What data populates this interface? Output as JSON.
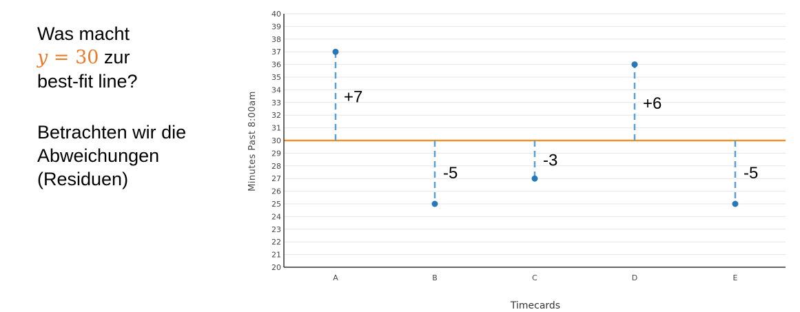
{
  "slide": {
    "question_prefix": "Was macht",
    "equation_var": "y",
    "equation_eq": " = ",
    "equation_val": "30",
    "question_suffix": " zur",
    "question_line3": "best-fit line?",
    "body_line1": "Betrachten wir die",
    "body_line2": "Abweichungen",
    "body_line3": "(Residuen)"
  },
  "colors": {
    "point": "#2878b8",
    "residual": "#5a9fd4",
    "fit_line": "#f0922e",
    "equation": "#e87a2a",
    "grid": "#e6e6e6",
    "axis": "#333333",
    "tick_text": "#444444"
  },
  "chart_data": {
    "type": "scatter",
    "categories": [
      "A",
      "B",
      "C",
      "D",
      "E"
    ],
    "values": [
      37,
      25,
      27,
      36,
      25
    ],
    "xlabel": "Timecards",
    "ylabel": "Minutes Past 8:00am",
    "ylim": [
      20,
      40
    ],
    "yticks": [
      20,
      21,
      22,
      23,
      24,
      25,
      26,
      27,
      28,
      29,
      30,
      31,
      32,
      33,
      34,
      35,
      36,
      37,
      38,
      39,
      40
    ],
    "grid": true,
    "fit_line": {
      "y": 30
    },
    "residual_labels": [
      "+7",
      "-5",
      "-3",
      "+6",
      "-5"
    ]
  }
}
